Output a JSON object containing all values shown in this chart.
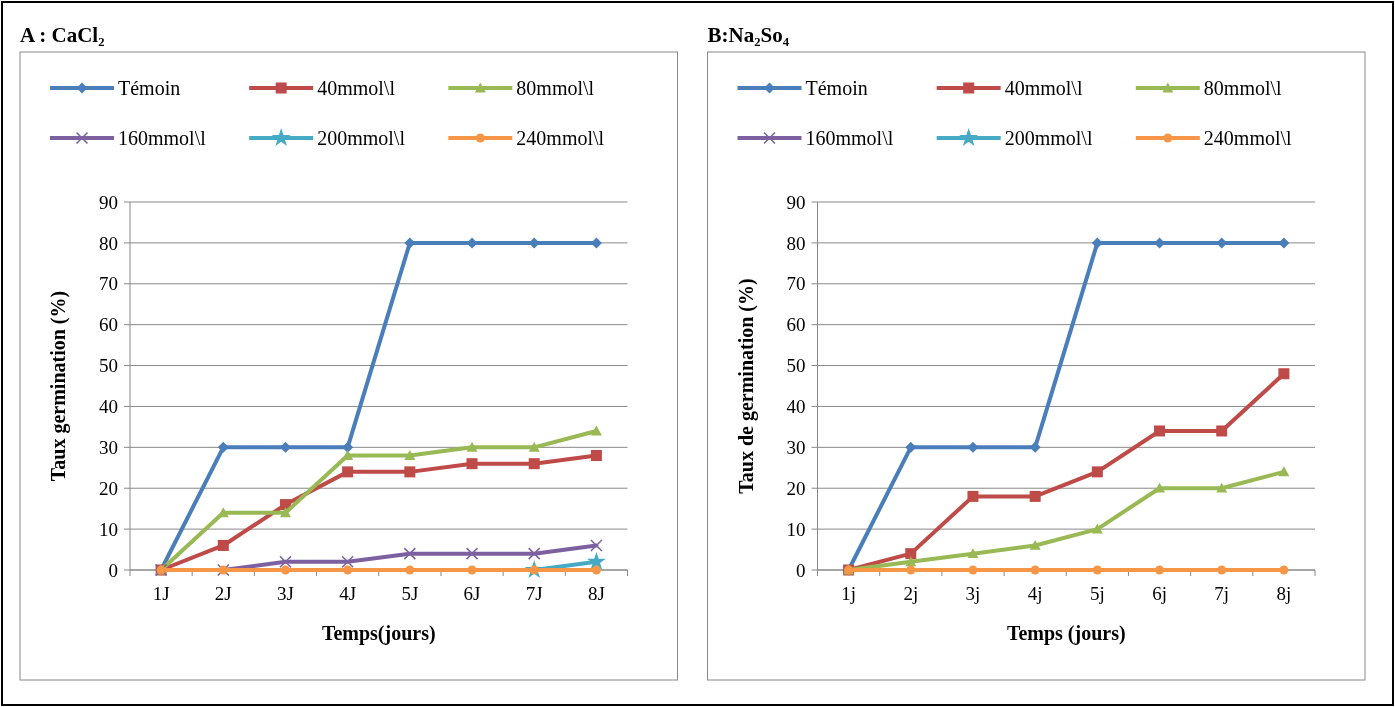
{
  "chart_data": [
    {
      "type": "line",
      "title": "A : CaCl₂",
      "xlabel": "Temps(jours)",
      "ylabel": "Taux germination (%)",
      "categories": [
        "1J",
        "2J",
        "3J",
        "4J",
        "5J",
        "6J",
        "7J",
        "8J"
      ],
      "ylim": [
        0,
        90
      ],
      "yticks": [
        0,
        10,
        20,
        30,
        40,
        50,
        60,
        70,
        80,
        90
      ],
      "grid": "y",
      "legend": "top",
      "series": [
        {
          "name": "Témoin",
          "color": "#4a7ebb",
          "marker": "diamond",
          "values": [
            0,
            30,
            30,
            30,
            80,
            80,
            80,
            80
          ]
        },
        {
          "name": "40mmol\\l",
          "color": "#be4b48",
          "marker": "square",
          "values": [
            0,
            6,
            16,
            24,
            24,
            26,
            26,
            28
          ]
        },
        {
          "name": "80mmol\\l",
          "color": "#98b954",
          "marker": "triangle",
          "values": [
            0,
            14,
            14,
            28,
            28,
            30,
            30,
            34
          ]
        },
        {
          "name": "160mmol\\l",
          "color": "#7d60a0",
          "marker": "cross",
          "values": [
            0,
            0,
            2,
            2,
            4,
            4,
            4,
            6
          ]
        },
        {
          "name": "200mmol\\l",
          "color": "#46aac5",
          "marker": "star",
          "values": [
            null,
            null,
            null,
            null,
            null,
            null,
            0,
            2
          ]
        },
        {
          "name": "240mmol\\l",
          "color": "#f79646",
          "marker": "circle",
          "values": [
            0,
            0,
            0,
            0,
            0,
            0,
            0,
            0
          ]
        }
      ]
    },
    {
      "type": "line",
      "title": "B:Na₂So₄",
      "xlabel": "Temps (jours)",
      "ylabel": "Taux de germination (%)",
      "categories": [
        "1j",
        "2j",
        "3j",
        "4j",
        "5j",
        "6j",
        "7j",
        "8j"
      ],
      "ylim": [
        0,
        90
      ],
      "yticks": [
        0,
        10,
        20,
        30,
        40,
        50,
        60,
        70,
        80,
        90
      ],
      "grid": "y",
      "legend": "top",
      "series": [
        {
          "name": "Témoin",
          "color": "#4a7ebb",
          "marker": "diamond",
          "values": [
            0,
            30,
            30,
            30,
            80,
            80,
            80,
            80
          ]
        },
        {
          "name": "40mmol\\l",
          "color": "#be4b48",
          "marker": "square",
          "values": [
            0,
            4,
            18,
            18,
            24,
            34,
            34,
            48
          ]
        },
        {
          "name": "80mmol\\l",
          "color": "#98b954",
          "marker": "triangle",
          "values": [
            0,
            2,
            4,
            6,
            10,
            20,
            20,
            24
          ]
        },
        {
          "name": "160mmol\\l",
          "color": "#7d60a0",
          "marker": "cross",
          "values": [
            null,
            null,
            null,
            null,
            null,
            null,
            null,
            null
          ]
        },
        {
          "name": "200mmol\\l",
          "color": "#46aac5",
          "marker": "star",
          "values": [
            null,
            null,
            null,
            null,
            null,
            null,
            null,
            null
          ]
        },
        {
          "name": "240mmol\\l",
          "color": "#f79646",
          "marker": "circle",
          "values": [
            0,
            0,
            0,
            0,
            0,
            0,
            0,
            0
          ]
        }
      ]
    }
  ]
}
